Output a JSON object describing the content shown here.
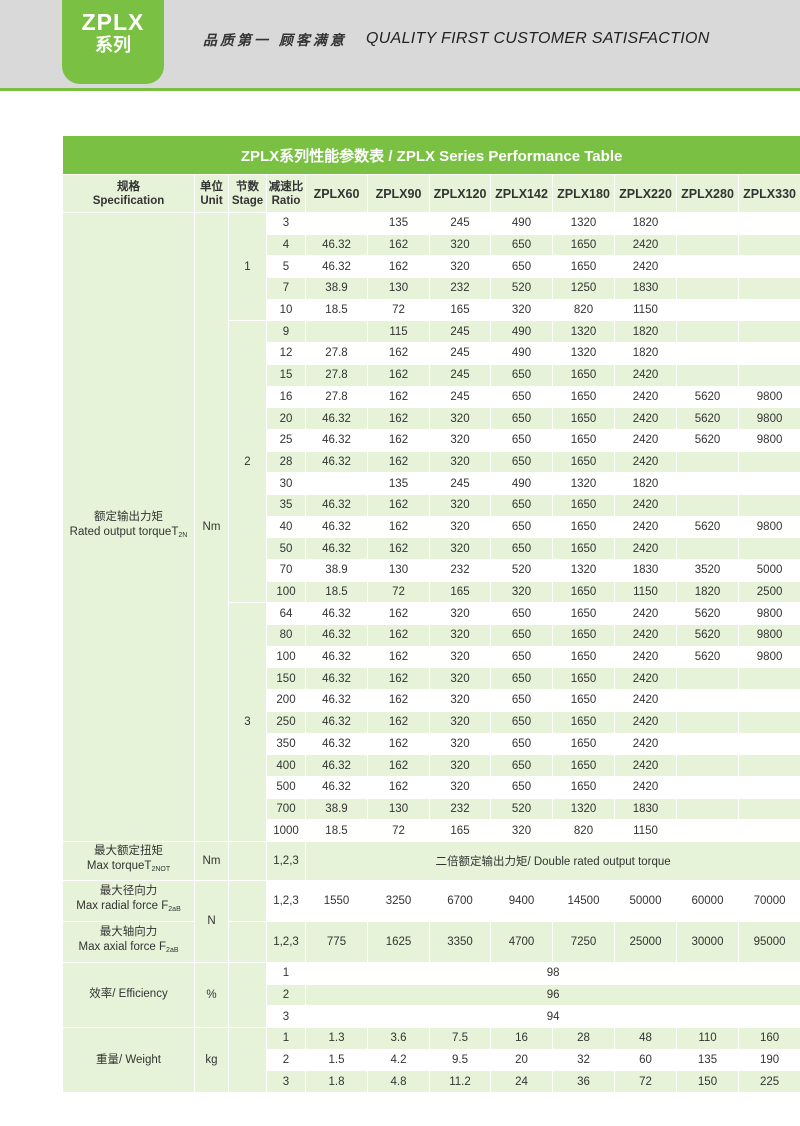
{
  "header": {
    "badge_line1": "ZPLX",
    "badge_line2": "系列",
    "slogan_cn": "品质第一  顾客满意",
    "slogan_en": "QUALITY FIRST  CUSTOMER SATISFACTION"
  },
  "table": {
    "title": "ZPLX系列性能参数表   /  ZPLX Series Performance Table",
    "headers": {
      "spec": "规格\nSpecification",
      "unit": "单位\nUnit",
      "stage": "节数\nStage",
      "ratio": "减速比\nRatio",
      "models": [
        "ZPLX60",
        "ZPLX90",
        "ZPLX120",
        "ZPLX142",
        "ZPLX180",
        "ZPLX220",
        "ZPLX280",
        "ZPLX330"
      ]
    },
    "rated_torque": {
      "label_cn": "额定输出力矩",
      "label_en": "Rated output torqueT",
      "label_sub": "2N",
      "unit": "Nm",
      "stage_labels": [
        "1",
        "2",
        "3"
      ],
      "rows": [
        [
          "3",
          "",
          "135",
          "245",
          "490",
          "1320",
          "1820",
          "",
          ""
        ],
        [
          "4",
          "46.32",
          "162",
          "320",
          "650",
          "1650",
          "2420",
          "",
          ""
        ],
        [
          "5",
          "46.32",
          "162",
          "320",
          "650",
          "1650",
          "2420",
          "",
          ""
        ],
        [
          "7",
          "38.9",
          "130",
          "232",
          "520",
          "1250",
          "1830",
          "",
          ""
        ],
        [
          "10",
          "18.5",
          "72",
          "165",
          "320",
          "820",
          "1150",
          "",
          ""
        ],
        [
          "9",
          "",
          "115",
          "245",
          "490",
          "1320",
          "1820",
          "",
          ""
        ],
        [
          "12",
          "27.8",
          "162",
          "245",
          "490",
          "1320",
          "1820",
          "",
          ""
        ],
        [
          "15",
          "27.8",
          "162",
          "245",
          "650",
          "1650",
          "2420",
          "",
          ""
        ],
        [
          "16",
          "27.8",
          "162",
          "245",
          "650",
          "1650",
          "2420",
          "5620",
          "9800"
        ],
        [
          "20",
          "46.32",
          "162",
          "320",
          "650",
          "1650",
          "2420",
          "5620",
          "9800"
        ],
        [
          "25",
          "46.32",
          "162",
          "320",
          "650",
          "1650",
          "2420",
          "5620",
          "9800"
        ],
        [
          "28",
          "46.32",
          "162",
          "320",
          "650",
          "1650",
          "2420",
          "",
          ""
        ],
        [
          "30",
          "",
          "135",
          "245",
          "490",
          "1320",
          "1820",
          "",
          ""
        ],
        [
          "35",
          "46.32",
          "162",
          "320",
          "650",
          "1650",
          "2420",
          "",
          ""
        ],
        [
          "40",
          "46.32",
          "162",
          "320",
          "650",
          "1650",
          "2420",
          "5620",
          "9800"
        ],
        [
          "50",
          "46.32",
          "162",
          "320",
          "650",
          "1650",
          "2420",
          "",
          ""
        ],
        [
          "70",
          "38.9",
          "130",
          "232",
          "520",
          "1320",
          "1830",
          "3520",
          "5000"
        ],
        [
          "100",
          "18.5",
          "72",
          "165",
          "320",
          "1650",
          "1150",
          "1820",
          "2500"
        ],
        [
          "64",
          "46.32",
          "162",
          "320",
          "650",
          "1650",
          "2420",
          "5620",
          "9800"
        ],
        [
          "80",
          "46.32",
          "162",
          "320",
          "650",
          "1650",
          "2420",
          "5620",
          "9800"
        ],
        [
          "100",
          "46.32",
          "162",
          "320",
          "650",
          "1650",
          "2420",
          "5620",
          "9800"
        ],
        [
          "150",
          "46.32",
          "162",
          "320",
          "650",
          "1650",
          "2420",
          "",
          ""
        ],
        [
          "200",
          "46.32",
          "162",
          "320",
          "650",
          "1650",
          "2420",
          "",
          ""
        ],
        [
          "250",
          "46.32",
          "162",
          "320",
          "650",
          "1650",
          "2420",
          "",
          ""
        ],
        [
          "350",
          "46.32",
          "162",
          "320",
          "650",
          "1650",
          "2420",
          "",
          ""
        ],
        [
          "400",
          "46.32",
          "162",
          "320",
          "650",
          "1650",
          "2420",
          "",
          ""
        ],
        [
          "500",
          "46.32",
          "162",
          "320",
          "650",
          "1650",
          "2420",
          "",
          ""
        ],
        [
          "700",
          "38.9",
          "130",
          "232",
          "520",
          "1320",
          "1830",
          "",
          ""
        ],
        [
          "1000",
          "18.5",
          "72",
          "165",
          "320",
          "820",
          "1150",
          "",
          ""
        ]
      ]
    },
    "max_torque": {
      "label_cn": "最大额定扭矩",
      "label_en": "Max torqueT",
      "label_sub": "2NOT",
      "unit": "Nm",
      "stage": "1,2,3",
      "value": "二倍额定输出力矩/ Double rated output torque"
    },
    "radial": {
      "label_cn": "最大径向力",
      "label_en": "Max radial force F",
      "label_sub": "2aB",
      "stage": "1,2,3",
      "values": [
        "1550",
        "3250",
        "6700",
        "9400",
        "14500",
        "50000",
        "60000",
        "70000"
      ]
    },
    "axial": {
      "label_cn": "最大轴向力",
      "label_en": "Max axial force F",
      "label_sub": "2aB",
      "stage": "1,2,3",
      "values": [
        "775",
        "1625",
        "3350",
        "4700",
        "7250",
        "25000",
        "30000",
        "95000"
      ]
    },
    "force_unit": "N",
    "efficiency": {
      "label": "效率/ Efficiency",
      "unit": "%",
      "rows": [
        [
          "1",
          "98"
        ],
        [
          "2",
          "96"
        ],
        [
          "3",
          "94"
        ]
      ]
    },
    "weight": {
      "label": "重量/ Weight",
      "unit": "kg",
      "rows": [
        [
          "1",
          "1.3",
          "3.6",
          "7.5",
          "16",
          "28",
          "48",
          "110",
          "160"
        ],
        [
          "2",
          "1.5",
          "4.2",
          "9.5",
          "20",
          "32",
          "60",
          "135",
          "190"
        ],
        [
          "3",
          "1.8",
          "4.8",
          "11.2",
          "24",
          "36",
          "72",
          "150",
          "225"
        ]
      ]
    }
  }
}
